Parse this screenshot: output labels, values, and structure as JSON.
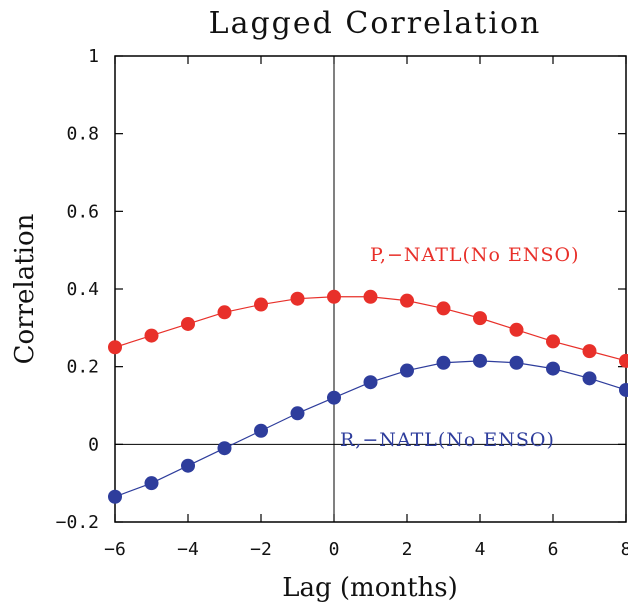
{
  "chart_data": {
    "type": "line",
    "title": "Lagged Correlation",
    "xlabel": "Lag (months)",
    "ylabel": "Correlation",
    "xlim": [
      -6,
      8
    ],
    "ylim": [
      -0.2,
      1
    ],
    "xticks": [
      -6,
      -4,
      -2,
      0,
      2,
      4,
      6,
      8
    ],
    "yticks": [
      -0.2,
      0,
      0.2,
      0.4,
      0.6,
      0.8,
      1
    ],
    "xtick_labels": [
      "−6",
      "−4",
      "−2",
      "0",
      "2",
      "4",
      "6",
      "8"
    ],
    "ytick_labels": [
      "−0.2",
      "0",
      "0.2",
      "0.4",
      "0.6",
      "0.8",
      "1"
    ],
    "reference_lines": {
      "x": 0,
      "y": 0
    },
    "grid": false,
    "x": [
      -6,
      -5,
      -4,
      -3,
      -2,
      -1,
      0,
      1,
      2,
      3,
      4,
      5,
      6,
      7,
      8
    ],
    "series": [
      {
        "name": "P,−NATL(No ENSO)",
        "color": "#e8302a",
        "values": [
          0.25,
          0.28,
          0.31,
          0.34,
          0.36,
          0.375,
          0.38,
          0.38,
          0.37,
          0.35,
          0.325,
          0.295,
          0.265,
          0.24,
          0.215
        ]
      },
      {
        "name": "R,−NATL(No ENSO)",
        "color": "#2e3d9c",
        "values": [
          -0.135,
          -0.1,
          -0.055,
          -0.01,
          0.035,
          0.08,
          0.12,
          0.16,
          0.19,
          0.21,
          0.215,
          0.21,
          0.195,
          0.17,
          0.14
        ]
      }
    ]
  }
}
